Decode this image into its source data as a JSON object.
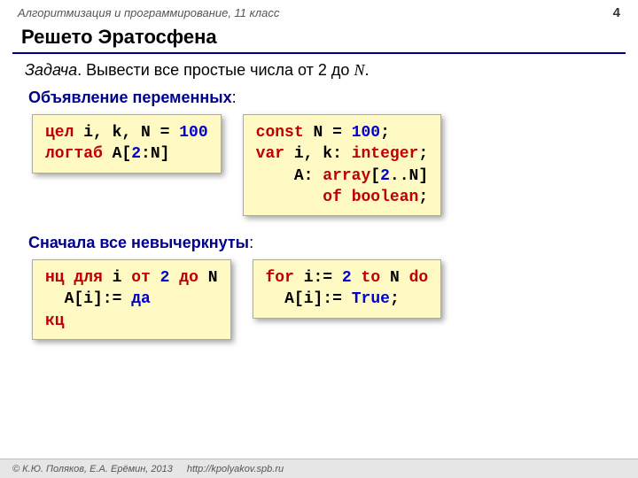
{
  "header": {
    "course": "Алгоритмизация и программирование, 11 класс",
    "page": "4"
  },
  "title": "Решето Эратосфена",
  "task": {
    "label": "Задача",
    "text": ". Вывести все простые числа от 2 до ",
    "n": "N",
    "dot": "."
  },
  "section1": {
    "label": "Объявление переменных",
    "colon": ":"
  },
  "section2": {
    "label": "Сначала все невычеркнуты",
    "colon": ":"
  },
  "code": {
    "a1": {
      "l1a": "цел",
      "l1b": " i, k, N",
      "l1c": " =",
      "l1d": " 100",
      "l2a": "логтаб",
      "l2b": " A[",
      "l2c": "2",
      "l2d": ":N]"
    },
    "a2": {
      "l1a": "const",
      "l1b": " N = ",
      "l1c": "100",
      "l1d": ";",
      "l2a": "var",
      "l2b": " i, k: ",
      "l2c": "integer",
      "l2d": ";",
      "l3a": "    A: ",
      "l3b": "array",
      "l3c": "[",
      "l3d": "2",
      "l3e": "..N]",
      "l4a": "       ",
      "l4b": "of",
      "l4c": " ",
      "l4d": "boolean",
      "l4e": ";"
    },
    "b1": {
      "l1a": "нц",
      "l1b": " ",
      "l1c": "для",
      "l1d": " i ",
      "l1e": "от",
      "l1f": " ",
      "l1g": "2",
      "l1h": " ",
      "l1i": "до",
      "l1j": " N",
      "l2a": "  A[i]:=",
      "l2b": " ",
      "l2c": "да",
      "l3a": "кц"
    },
    "b2": {
      "l1a": "for",
      "l1b": " i:=",
      "l1c": " 2",
      "l1d": " ",
      "l1e": "to",
      "l1f": " N ",
      "l1g": "do",
      "l2a": "  A[i]:= ",
      "l2b": "True",
      "l2c": ";"
    }
  },
  "footer": {
    "copyright": "© К.Ю. Поляков, Е.А. Ерёмин, 2013",
    "url": "http://kpolyakov.spb.ru"
  }
}
